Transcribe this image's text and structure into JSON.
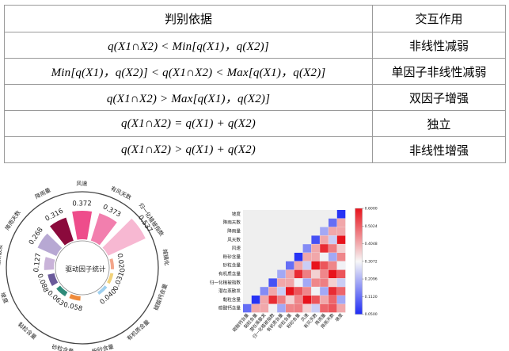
{
  "table": {
    "headers": [
      "判别依据",
      "交互作用"
    ],
    "rows": [
      {
        "basis": "q(X1∩X2) < Min[q(X1)，q(X2)]",
        "interaction": "非线性减弱"
      },
      {
        "basis": "Min[q(X1)，q(X2)] <  q(X1∩X2) <  Max[q(X1)，q(X2)]",
        "interaction": "单因子非线性减弱"
      },
      {
        "basis": "q(X1∩X2) >  Max[q(X1)，q(X2)]",
        "interaction": "双因子增强"
      },
      {
        "basis": "q(X1∩X2) = q(X1) + q(X2)",
        "interaction": "独立"
      },
      {
        "basis": "q(X1∩X2) > q(X1) + q(X2)",
        "interaction": "非线性增强"
      }
    ]
  },
  "chart_data": [
    {
      "type": "bar",
      "subtype": "radial",
      "center_label": "驱动因子统计",
      "categories": [
        "降雨量",
        "风速",
        "有风天数",
        "归一化植被指数",
        "城镇化",
        "碳酸钙含量",
        "有机质含量",
        "粉砂含量",
        "砂粒含量",
        "黏粒含量",
        "坡度",
        "潜在蒸散发",
        "降雨天数"
      ],
      "values": [
        0.316,
        0.372,
        0.373,
        0.537,
        0.02,
        0.031,
        0.04,
        null,
        0.058,
        0.063,
        0.088,
        0.127,
        0.268
      ],
      "value_labels": [
        "0.316",
        "0.372",
        "0.373",
        "0.537",
        "0.020",
        "0.031",
        "0.040",
        "",
        "0.058",
        "0.063",
        "0.088",
        "0.127",
        "0.268"
      ],
      "colors": {
        "降雨量": "#8b0a3c",
        "风速": "#ee4d8b",
        "有风天数": "#f27fae",
        "归一化植被指数": "#f7b8d2",
        "城镇化": "#f3a58a",
        "碳酸钙含量": "#f2d27a",
        "有机质含量": "#9fd0ef",
        "粉砂含量": "#ef8a3a",
        "砂粒含量": "#ef8a3a",
        "黏粒含量": "#2e8b7a",
        "坡度": "#6a5a9a",
        "潜在蒸散发": "#c9b3d9",
        "降雨天数": "#b7a8d3"
      }
    },
    {
      "type": "heatmap",
      "labels": [
        "坡度",
        "降雨天数",
        "降雨量",
        "风天数",
        "风速",
        "粉砂含量",
        "砂粒含量",
        "有机质含量",
        "归一化植被指数",
        "潜在蒸散发",
        "黏粒含量",
        "碳酸钙含量"
      ],
      "x_labels": [
        "碳酸钙含量",
        "黏粒含量",
        "潜在蒸散发",
        "归一化植被指数",
        "有机质含量",
        "砂粒含量",
        "粉砂含量",
        "风速",
        "有风天数",
        "降雨量",
        "降雨天数",
        "坡度"
      ],
      "colorbar_ticks": [
        "0.6000",
        "0.5024",
        "0.4048",
        "0.3072",
        "0.2096",
        "0.1120",
        "0.0500"
      ],
      "vmin": 0.05,
      "vmax": 0.6,
      "colors": {
        "low": "#1f2cf5",
        "mid": "#f5f5f5",
        "high": "#e8131c"
      }
    }
  ]
}
